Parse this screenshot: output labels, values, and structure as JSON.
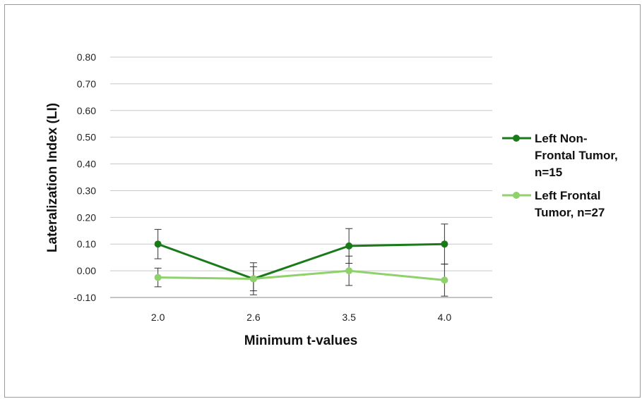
{
  "chart_data": {
    "type": "line",
    "title": "",
    "xlabel": "Minimum t-values",
    "ylabel": "Lateralization Index (LI)",
    "categories": [
      "2.0",
      "2.6",
      "3.5",
      "4.0"
    ],
    "yticks": [
      "0.80",
      "0.70",
      "0.60",
      "0.50",
      "0.40",
      "0.30",
      "0.20",
      "0.10",
      "0.00",
      "-0.10"
    ],
    "ylim": [
      -0.1,
      0.8
    ],
    "grid": true,
    "legend_position": "right",
    "series": [
      {
        "name": "Left Non-Frontal Tumor, n=15",
        "legend_lines": [
          "Left Non-",
          "Frontal Tumor,",
          "n=15"
        ],
        "color": "#1a7a1a",
        "values": [
          0.1,
          -0.03,
          0.093,
          0.1
        ],
        "error": [
          0.055,
          0.06,
          0.065,
          0.075
        ]
      },
      {
        "name": "Left Frontal Tumor, n=27",
        "legend_lines": [
          "Left Frontal",
          "Tumor, n=27"
        ],
        "color": "#8fd16a",
        "values": [
          -0.025,
          -0.03,
          0.0,
          -0.035
        ],
        "error": [
          0.035,
          0.045,
          0.055,
          0.06
        ]
      }
    ]
  }
}
